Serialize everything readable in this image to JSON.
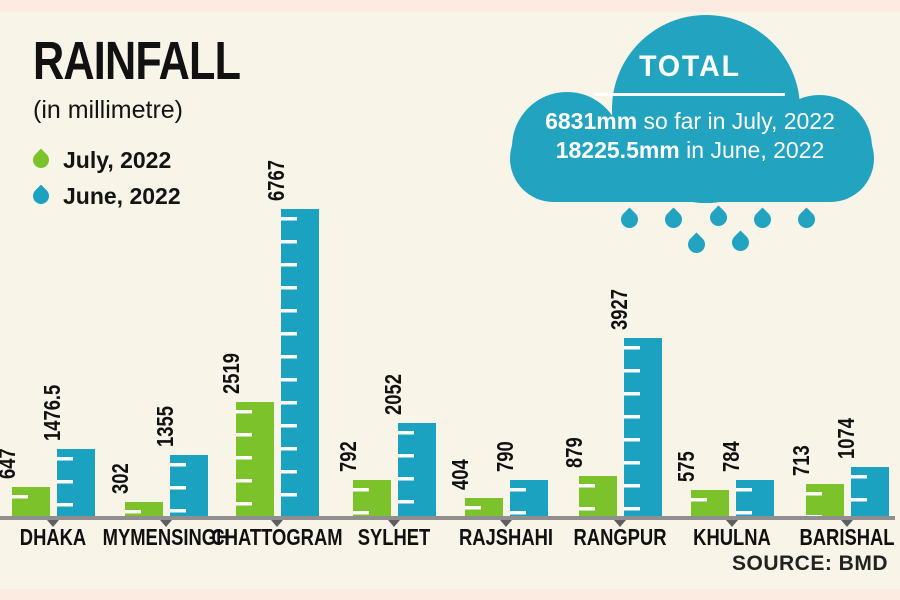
{
  "title": "RAINFALL",
  "subtitle": "(in millimetre)",
  "legend": [
    {
      "label": "July, 2022",
      "color": "#7cc22a"
    },
    {
      "label": "June, 2022",
      "color": "#1ba2c0"
    }
  ],
  "cloud": {
    "title": "TOTAL",
    "line1_bold": "6831mm",
    "line1_rest": " so far in July, 2022",
    "line2_bold": "18225.5mm",
    "line2_rest": " in June, 2022"
  },
  "source": "SOURCE: BMD",
  "colors": {
    "july_green": "#7cc22a",
    "june_blue": "#1ba2c0",
    "cloud_teal": "#22a3bf",
    "axis_gray": "#8f8f8f",
    "background_cream": "#f8f4e7",
    "border_strip_pink": "#fcebe0",
    "text_black": "#141414"
  },
  "chart_data": {
    "type": "bar",
    "title": "RAINFALL",
    "unit_label": "(in millimetre)",
    "categories": [
      "DHAKA",
      "MYMENSINGH",
      "CHATTOGRAM",
      "SYLHET",
      "RAJSHAHI",
      "RANGPUR",
      "KHULNA",
      "BARISHAL"
    ],
    "series": [
      {
        "name": "July, 2022",
        "color": "#7cc22a",
        "values": [
          647,
          302,
          2519,
          792,
          404,
          879,
          575,
          713
        ]
      },
      {
        "name": "June, 2022",
        "color": "#1ba2c0",
        "values": [
          1476.5,
          1355,
          6767,
          2052,
          790,
          3927,
          784,
          1074
        ]
      }
    ],
    "ylim": [
      0,
      6800
    ],
    "grid": false,
    "legend_position": "top-left",
    "value_labels": "rotated-90-above-bars",
    "totals": {
      "july_2022_mm": 6831,
      "june_2022_mm": 18225.5
    }
  }
}
